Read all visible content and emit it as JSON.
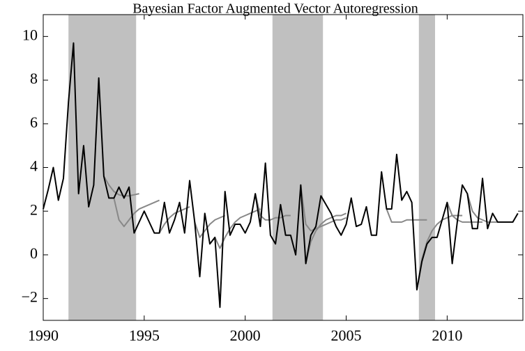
{
  "chart_data": {
    "type": "line",
    "title": "Bayesian Factor Augmented Vector Autoregression",
    "xlim": [
      1990,
      2013.75
    ],
    "ylim": [
      -3,
      11
    ],
    "xticks": [
      1990,
      1995,
      2000,
      2005,
      2010
    ],
    "yticks": [
      {
        "value": -2,
        "label": "−2"
      },
      0,
      2,
      4,
      6,
      8,
      10
    ],
    "shade_color": "#c0c0c0",
    "shaded_regions": [
      [
        1991.25,
        1994.6
      ],
      [
        2001.35,
        2003.85
      ],
      [
        2008.6,
        2009.4
      ]
    ],
    "series": [
      {
        "color": "#888888",
        "x": [
          1993,
          1993.25,
          1993.5,
          1993.75,
          1994,
          1994.25,
          1994.5,
          1994.75
        ],
        "values": [
          3.6,
          3.2,
          2.9,
          2.75,
          2.7,
          2.7,
          2.75,
          2.8
        ]
      },
      {
        "color": "#888888",
        "x": [
          1993.5,
          1993.75,
          1994,
          1994.25,
          1994.5,
          1994.75,
          1995,
          1995.25,
          1995.5,
          1995.75
        ],
        "values": [
          2.6,
          1.6,
          1.3,
          1.6,
          1.9,
          2.1,
          2.2,
          2.3,
          2.4,
          2.5
        ]
      },
      {
        "color": "#888888",
        "x": [
          1995.75,
          1996,
          1996.25,
          1996.5,
          1996.75,
          1997,
          1997.25
        ],
        "values": [
          1.0,
          1.4,
          1.7,
          1.9,
          2.0,
          2.1,
          2.2
        ]
      },
      {
        "color": "#888888",
        "x": [
          1997.5,
          1997.75,
          1998,
          1998.25,
          1998.5,
          1998.75,
          1999
        ],
        "values": [
          1.5,
          0.8,
          1.1,
          1.4,
          1.6,
          1.7,
          1.8
        ]
      },
      {
        "color": "#888888",
        "x": [
          1998.5,
          1998.75,
          1999,
          1999.25,
          1999.5,
          1999.75,
          2000,
          2000.25,
          2000.5,
          2000.75
        ],
        "values": [
          0.8,
          0.3,
          0.8,
          1.2,
          1.5,
          1.7,
          1.8,
          1.9,
          2.0,
          2.1
        ]
      },
      {
        "color": "#888888",
        "x": [
          2000.5,
          2000.75,
          2001,
          2001.25,
          2001.5,
          2001.75,
          2002,
          2002.25
        ],
        "values": [
          2.8,
          1.8,
          1.6,
          1.6,
          1.7,
          1.7,
          1.8,
          1.8
        ]
      },
      {
        "color": "#888888",
        "x": [
          2002.75,
          2003,
          2003.25,
          2003.5,
          2003.75,
          2004,
          2004.25,
          2004.5,
          2004.75,
          2005
        ],
        "values": [
          3.2,
          1.4,
          1.1,
          1.2,
          1.3,
          1.4,
          1.5,
          1.6,
          1.6,
          1.7
        ]
      },
      {
        "color": "#888888",
        "x": [
          2003,
          2003.25,
          2003.5,
          2003.75,
          2004,
          2004.25,
          2004.5,
          2004.75,
          2005
        ],
        "values": [
          -0.4,
          0.6,
          1.1,
          1.4,
          1.6,
          1.7,
          1.8,
          1.8,
          1.9
        ]
      },
      {
        "color": "#888888",
        "x": [
          2007,
          2007.25,
          2007.5,
          2007.75,
          2008,
          2008.25,
          2008.5,
          2008.75,
          2009
        ],
        "values": [
          2.1,
          1.5,
          1.5,
          1.5,
          1.6,
          1.6,
          1.6,
          1.6,
          1.6
        ]
      },
      {
        "color": "#888888",
        "x": [
          2008.5,
          2008.75,
          2009,
          2009.25,
          2009.5,
          2009.75,
          2010,
          2010.25,
          2010.5,
          2010.75
        ],
        "values": [
          -1.6,
          -0.2,
          0.6,
          1.1,
          1.4,
          1.6,
          1.7,
          1.8,
          1.8,
          1.8
        ]
      },
      {
        "color": "#888888",
        "x": [
          2010,
          2010.25,
          2010.5,
          2010.75,
          2011,
          2011.25,
          2011.5,
          2011.75
        ],
        "values": [
          2.4,
          1.8,
          1.6,
          1.5,
          1.5,
          1.5,
          1.5,
          1.5
        ]
      },
      {
        "color": "#888888",
        "x": [
          2011,
          2011.25,
          2011.5,
          2011.75,
          2012,
          2012.25,
          2012.5
        ],
        "values": [
          2.8,
          2.0,
          1.7,
          1.6,
          1.5,
          1.5,
          1.5
        ]
      },
      {
        "color": "#000000",
        "x": [
          1990,
          1990.25,
          1990.5,
          1990.75,
          1991,
          1991.25,
          1991.5,
          1991.75,
          1992,
          1992.25,
          1992.5,
          1992.75,
          1993,
          1993.25,
          1993.5,
          1993.75,
          1994,
          1994.25,
          1994.5,
          1994.75,
          1995,
          1995.25,
          1995.5,
          1995.75,
          1996,
          1996.25,
          1996.5,
          1996.75,
          1997,
          1997.25,
          1997.5,
          1997.75,
          1998,
          1998.25,
          1998.5,
          1998.75,
          1999,
          1999.25,
          1999.5,
          1999.75,
          2000,
          2000.25,
          2000.5,
          2000.75,
          2001,
          2001.25,
          2001.5,
          2001.75,
          2002,
          2002.25,
          2002.5,
          2002.75,
          2003,
          2003.25,
          2003.5,
          2003.75,
          2004,
          2004.25,
          2004.5,
          2004.75,
          2005,
          2005.25,
          2005.5,
          2005.75,
          2006,
          2006.25,
          2006.5,
          2006.75,
          2007,
          2007.25,
          2007.5,
          2007.75,
          2008,
          2008.25,
          2008.5,
          2008.75,
          2009,
          2009.25,
          2009.5,
          2009.75,
          2010,
          2010.25,
          2010.5,
          2010.75,
          2011,
          2011.25,
          2011.5,
          2011.75,
          2012,
          2012.25,
          2012.5,
          2012.75,
          2013,
          2013.25,
          2013.5
        ],
        "values": [
          2.1,
          3.0,
          4.0,
          2.5,
          3.5,
          7.0,
          9.7,
          2.8,
          5.0,
          2.2,
          3.2,
          8.1,
          3.6,
          2.6,
          2.6,
          3.1,
          2.6,
          3.1,
          1.0,
          1.5,
          2.0,
          1.5,
          1.0,
          1.0,
          2.4,
          1.0,
          1.6,
          2.4,
          1.0,
          3.4,
          1.5,
          -1.0,
          1.9,
          0.5,
          0.8,
          -2.4,
          2.9,
          0.9,
          1.4,
          1.4,
          1.0,
          1.5,
          2.8,
          1.3,
          4.2,
          0.9,
          0.5,
          2.3,
          0.9,
          0.9,
          0.0,
          3.2,
          -0.4,
          0.9,
          1.3,
          2.7,
          2.3,
          1.9,
          1.3,
          0.9,
          1.4,
          2.6,
          1.3,
          1.4,
          2.2,
          0.9,
          0.9,
          3.8,
          2.1,
          2.1,
          4.6,
          2.5,
          2.9,
          2.4,
          -1.6,
          -0.3,
          0.5,
          0.8,
          0.8,
          1.6,
          2.4,
          -0.4,
          1.5,
          3.2,
          2.8,
          1.2,
          1.2,
          3.5,
          1.2,
          1.9,
          1.5,
          1.5,
          1.5,
          1.5,
          1.9
        ]
      }
    ]
  }
}
